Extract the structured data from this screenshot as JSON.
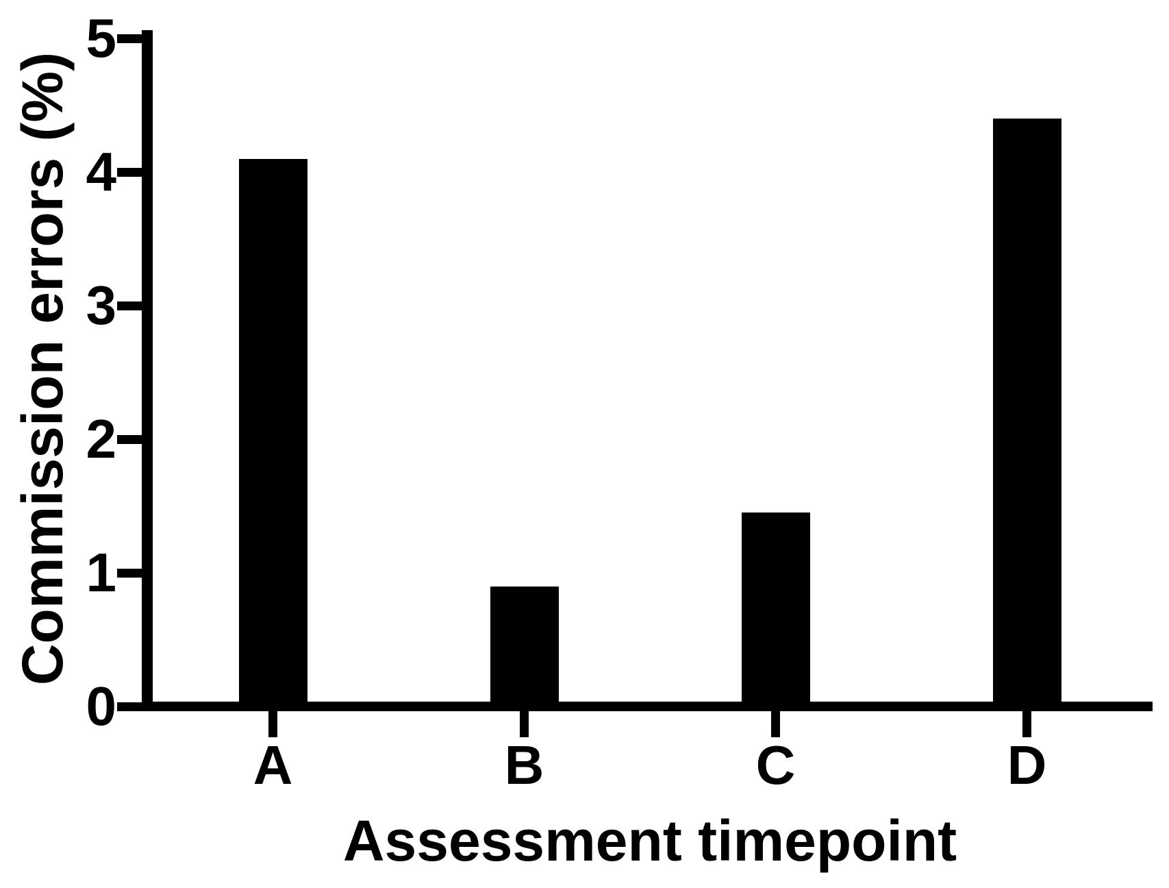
{
  "chart_data": {
    "type": "bar",
    "title": "",
    "categories": [
      "A",
      "B",
      "C",
      "D"
    ],
    "values": [
      4.1,
      0.9,
      1.45,
      4.4
    ],
    "xlabel": "Assessment timepoint",
    "ylabel": "Commission errors (%)",
    "ylim": [
      0,
      5
    ],
    "y_ticks": [
      0,
      1,
      2,
      3,
      4,
      5
    ],
    "bar_color": "#000000",
    "axis_color": "#000000",
    "background_color": "#ffffff",
    "grid": false,
    "legend": false
  }
}
